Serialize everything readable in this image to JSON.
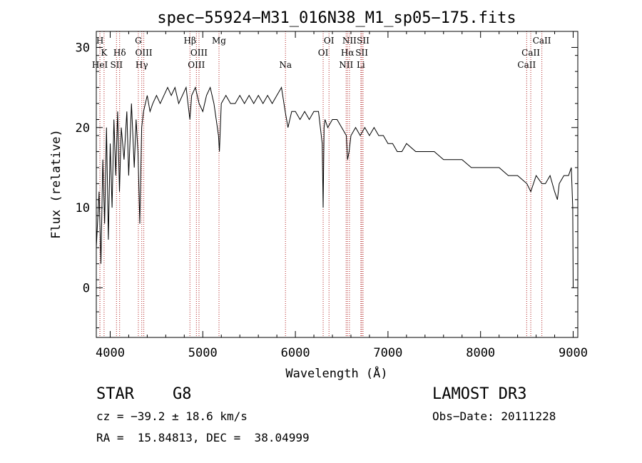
{
  "chart_data": {
    "type": "line",
    "title": "spec−55924−M31_016N38_M1_sp05−175.fits",
    "xlabel": "Wavelength (Å)",
    "ylabel": "Flux (relative)",
    "xlim": [
      3850,
      9050
    ],
    "ylim": [
      -6.2,
      32
    ],
    "xticks": [
      4000,
      5000,
      6000,
      7000,
      8000,
      9000
    ],
    "yticks": [
      0,
      10,
      20,
      30
    ],
    "grid": false,
    "series": [
      {
        "name": "spectrum",
        "x": [
          3850,
          3880,
          3900,
          3920,
          3940,
          3960,
          3980,
          4000,
          4020,
          4040,
          4060,
          4080,
          4100,
          4120,
          4150,
          4180,
          4200,
          4230,
          4260,
          4280,
          4300,
          4320,
          4340,
          4360,
          4380,
          4400,
          4430,
          4460,
          4500,
          4540,
          4580,
          4620,
          4660,
          4700,
          4740,
          4780,
          4820,
          4861,
          4880,
          4920,
          4960,
          5000,
          5040,
          5080,
          5120,
          5170,
          5180,
          5200,
          5250,
          5300,
          5350,
          5400,
          5450,
          5500,
          5550,
          5600,
          5650,
          5700,
          5750,
          5800,
          5850,
          5890,
          5920,
          5960,
          6000,
          6050,
          6100,
          6150,
          6200,
          6250,
          6290,
          6300,
          6310,
          6320,
          6350,
          6400,
          6450,
          6500,
          6550,
          6563,
          6580,
          6600,
          6650,
          6700,
          6750,
          6800,
          6850,
          6900,
          6950,
          7000,
          7050,
          7100,
          7150,
          7200,
          7300,
          7400,
          7500,
          7600,
          7700,
          7800,
          7900,
          8000,
          8100,
          8200,
          8300,
          8400,
          8500,
          8542,
          8600,
          8662,
          8700,
          8750,
          8800,
          8830,
          8850,
          8900,
          8950,
          8980,
          8995,
          9000
        ],
        "y": [
          5,
          12,
          3,
          16,
          8,
          20,
          6,
          18,
          10,
          21,
          14,
          22,
          12,
          20,
          16,
          22,
          14,
          23,
          15,
          21,
          17,
          8,
          20,
          22,
          23,
          24,
          22,
          23,
          24,
          23,
          24,
          25,
          24,
          25,
          23,
          24,
          25,
          21,
          24,
          25,
          23,
          22,
          24,
          25,
          23,
          19,
          17,
          23,
          24,
          23,
          23,
          24,
          23,
          24,
          23,
          24,
          23,
          24,
          23,
          24,
          25,
          22,
          20,
          22,
          22,
          21,
          22,
          21,
          22,
          22,
          18,
          10,
          20,
          21,
          20,
          21,
          21,
          20,
          19,
          16,
          17,
          19,
          20,
          19,
          20,
          19,
          20,
          19,
          19,
          18,
          18,
          17,
          17,
          18,
          17,
          17,
          17,
          16,
          16,
          16,
          15,
          15,
          15,
          15,
          14,
          14,
          13,
          12,
          14,
          13,
          13,
          14,
          12,
          11,
          13,
          14,
          14,
          15,
          10,
          0
        ]
      }
    ],
    "spectral_lines": [
      {
        "label": "H",
        "x": 3889,
        "row": 0
      },
      {
        "label": "K",
        "x": 3934,
        "row": 1
      },
      {
        "label": "HeI",
        "x": 3889,
        "row": 2
      },
      {
        "label": "Hδ",
        "x": 4102,
        "row": 1
      },
      {
        "label": "SII",
        "x": 4068,
        "row": 2
      },
      {
        "label": "G",
        "x": 4304,
        "row": 0
      },
      {
        "label": "OIII",
        "x": 4363,
        "row": 1
      },
      {
        "label": "Hγ",
        "x": 4341,
        "row": 2
      },
      {
        "label": "Hβ",
        "x": 4861,
        "row": 0
      },
      {
        "label": "OIII",
        "x": 4959,
        "row": 1
      },
      {
        "label": "OIII",
        "x": 4931,
        "row": 2
      },
      {
        "label": "Mg",
        "x": 5175,
        "row": 0
      },
      {
        "label": "Na",
        "x": 5893,
        "row": 2
      },
      {
        "label": "OI",
        "x": 6363,
        "row": 0
      },
      {
        "label": "OI",
        "x": 6300,
        "row": 1
      },
      {
        "label": "NII",
        "x": 6584,
        "row": 0
      },
      {
        "label": "Hα",
        "x": 6563,
        "row": 1
      },
      {
        "label": "NII",
        "x": 6548,
        "row": 2
      },
      {
        "label": "SII",
        "x": 6731,
        "row": 0
      },
      {
        "label": "SII",
        "x": 6717,
        "row": 1
      },
      {
        "label": "Li",
        "x": 6707,
        "row": 2
      },
      {
        "label": "CaII",
        "x": 8662,
        "row": 0
      },
      {
        "label": "CaII",
        "x": 8542,
        "row": 1
      },
      {
        "label": "CaII",
        "x": 8498,
        "row": 2
      }
    ]
  },
  "info": {
    "class": "STAR",
    "subclass": "G8",
    "survey": "LAMOST DR3",
    "cz": "cz = −39.2 ± 18.6 km/s",
    "obs_date": "Obs−Date: 20111228",
    "coords": "RA =  15.84813, DEC =  38.04999"
  },
  "colors": {
    "line": "#000000",
    "marker": "#b22222",
    "axes": "#000000"
  }
}
